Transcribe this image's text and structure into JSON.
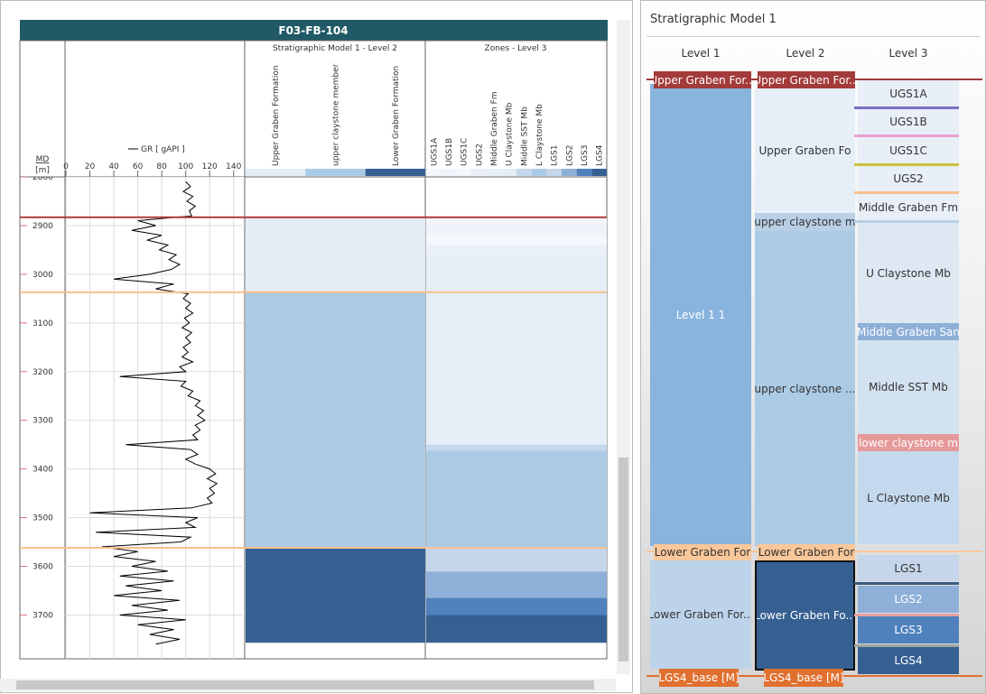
{
  "well_panel": {
    "title": "F03-FB-104",
    "md_label": "MD",
    "md_unit": "[m]",
    "gr_legend": "GR [ gAPI ]",
    "xlim": [
      0,
      150
    ],
    "xticks": [
      0,
      20,
      40,
      60,
      80,
      100,
      120,
      140
    ],
    "ylim": [
      2800,
      3790
    ],
    "yticks": [
      2800,
      2900,
      3000,
      3100,
      3200,
      3300,
      3400,
      3500,
      3600,
      3700
    ],
    "gr_curve": {
      "md": [
        2810,
        2820,
        2830,
        2840,
        2850,
        2860,
        2870,
        2880,
        2890,
        2900,
        2910,
        2920,
        2930,
        2940,
        2950,
        2960,
        2970,
        2980,
        2990,
        3000,
        3010,
        3020,
        3030,
        3040,
        3050,
        3060,
        3070,
        3080,
        3090,
        3100,
        3110,
        3120,
        3130,
        3140,
        3150,
        3160,
        3170,
        3180,
        3190,
        3200,
        3210,
        3220,
        3230,
        3240,
        3250,
        3260,
        3270,
        3280,
        3290,
        3300,
        3310,
        3320,
        3330,
        3340,
        3350,
        3360,
        3370,
        3380,
        3390,
        3400,
        3410,
        3420,
        3430,
        3440,
        3450,
        3460,
        3470,
        3480,
        3490,
        3500,
        3510,
        3520,
        3530,
        3540,
        3550,
        3560,
        3570,
        3580,
        3590,
        3600,
        3610,
        3620,
        3630,
        3640,
        3650,
        3660,
        3670,
        3680,
        3690,
        3700,
        3710,
        3720,
        3730,
        3740,
        3750,
        3760
      ],
      "values": [
        100,
        104,
        98,
        106,
        101,
        108,
        103,
        105,
        60,
        75,
        55,
        80,
        68,
        85,
        78,
        92,
        86,
        95,
        88,
        70,
        40,
        90,
        75,
        102,
        98,
        104,
        100,
        106,
        99,
        103,
        97,
        105,
        100,
        104,
        98,
        102,
        97,
        106,
        95,
        100,
        45,
        100,
        96,
        106,
        102,
        112,
        108,
        115,
        110,
        116,
        108,
        112,
        106,
        110,
        50,
        104,
        110,
        100,
        108,
        120,
        125,
        118,
        126,
        120,
        124,
        118,
        122,
        105,
        20,
        110,
        100,
        108,
        25,
        104,
        96,
        30,
        60,
        40,
        75,
        55,
        85,
        45,
        90,
        50,
        80,
        40,
        95,
        55,
        85,
        45,
        100,
        60,
        90,
        70,
        95,
        75
      ],
      "color": "#000000"
    },
    "tops": [
      {
        "md": 2883,
        "color": "#b03a3a"
      },
      {
        "md": 3037,
        "color": "#f7c08a"
      },
      {
        "md": 3562,
        "color": "#f7c08a"
      }
    ],
    "strat_track": {
      "title": "Stratigraphic Model 1 - Level 2",
      "units": [
        {
          "name": "Upper Graben Formation",
          "color": "#e4ecf6",
          "top": 2883,
          "base": 3037
        },
        {
          "name": "upper claystone member",
          "color": "#abcbe5",
          "top": 3037,
          "base": 3562
        },
        {
          "name": "Lower Graben Formation",
          "color": "#366092",
          "top": 3562,
          "base": 3757
        }
      ]
    },
    "zones_track": {
      "title": "Zones - Level 3",
      "zones": [
        {
          "name": "UGS1A",
          "color": "#f2f6fb",
          "top": 2883,
          "base": 2898
        },
        {
          "name": "UGS1B",
          "color": "#edf3f9",
          "top": 2898,
          "base": 2918
        },
        {
          "name": "UGS1C",
          "color": "#f4f7fb",
          "top": 2918,
          "base": 2940
        },
        {
          "name": "UGS2",
          "color": "#eaf0f8",
          "top": 2940,
          "base": 2960
        },
        {
          "name": "Middle Graben Fm",
          "color": "#e6eef7",
          "top": 2960,
          "base": 3037
        },
        {
          "name": "U Claystone Mb",
          "color": "#e5eef7",
          "top": 3037,
          "base": 3350
        },
        {
          "name": "Middle SST Mb",
          "color": "#c5d9ee",
          "top": 3350,
          "base": 3362
        },
        {
          "name": "L Claystone Mb",
          "color": "#abcbe5",
          "top": 3362,
          "base": 3562
        },
        {
          "name": "LGS1",
          "color": "#c5d5ea",
          "top": 3562,
          "base": 3611
        },
        {
          "name": "LGS2",
          "color": "#8eb0d8",
          "top": 3611,
          "base": 3665
        },
        {
          "name": "LGS3",
          "color": "#4f81bd",
          "top": 3665,
          "base": 3700
        },
        {
          "name": "LGS4",
          "color": "#366092",
          "top": 3700,
          "base": 3757
        }
      ]
    }
  },
  "model_panel": {
    "title": "Stratigraphic Model 1",
    "columns": [
      "Level 1",
      "Level 2",
      "Level 3"
    ],
    "level1": [
      "Upper Graben For...",
      "Level 1 1",
      "Lower Graben For",
      "Lower Graben For...",
      "LGS4_base [M]"
    ],
    "level2": [
      "Upper Graben For...",
      "Upper Graben Fo",
      "upper claystone m",
      "upper claystone ...",
      "Lower Graben For",
      "Lower Graben Fo...",
      "LGS4_base [M]"
    ],
    "level3": [
      "UGS1A",
      "UGS1B",
      "UGS1C",
      "UGS2",
      "Middle Graben Fm",
      "U Claystone Mb",
      "Middle Graben San",
      "Middle SST Mb",
      "lower claystone m",
      "L Claystone Mb",
      "LGS1",
      "LGS2",
      "LGS3",
      "LGS4"
    ]
  }
}
